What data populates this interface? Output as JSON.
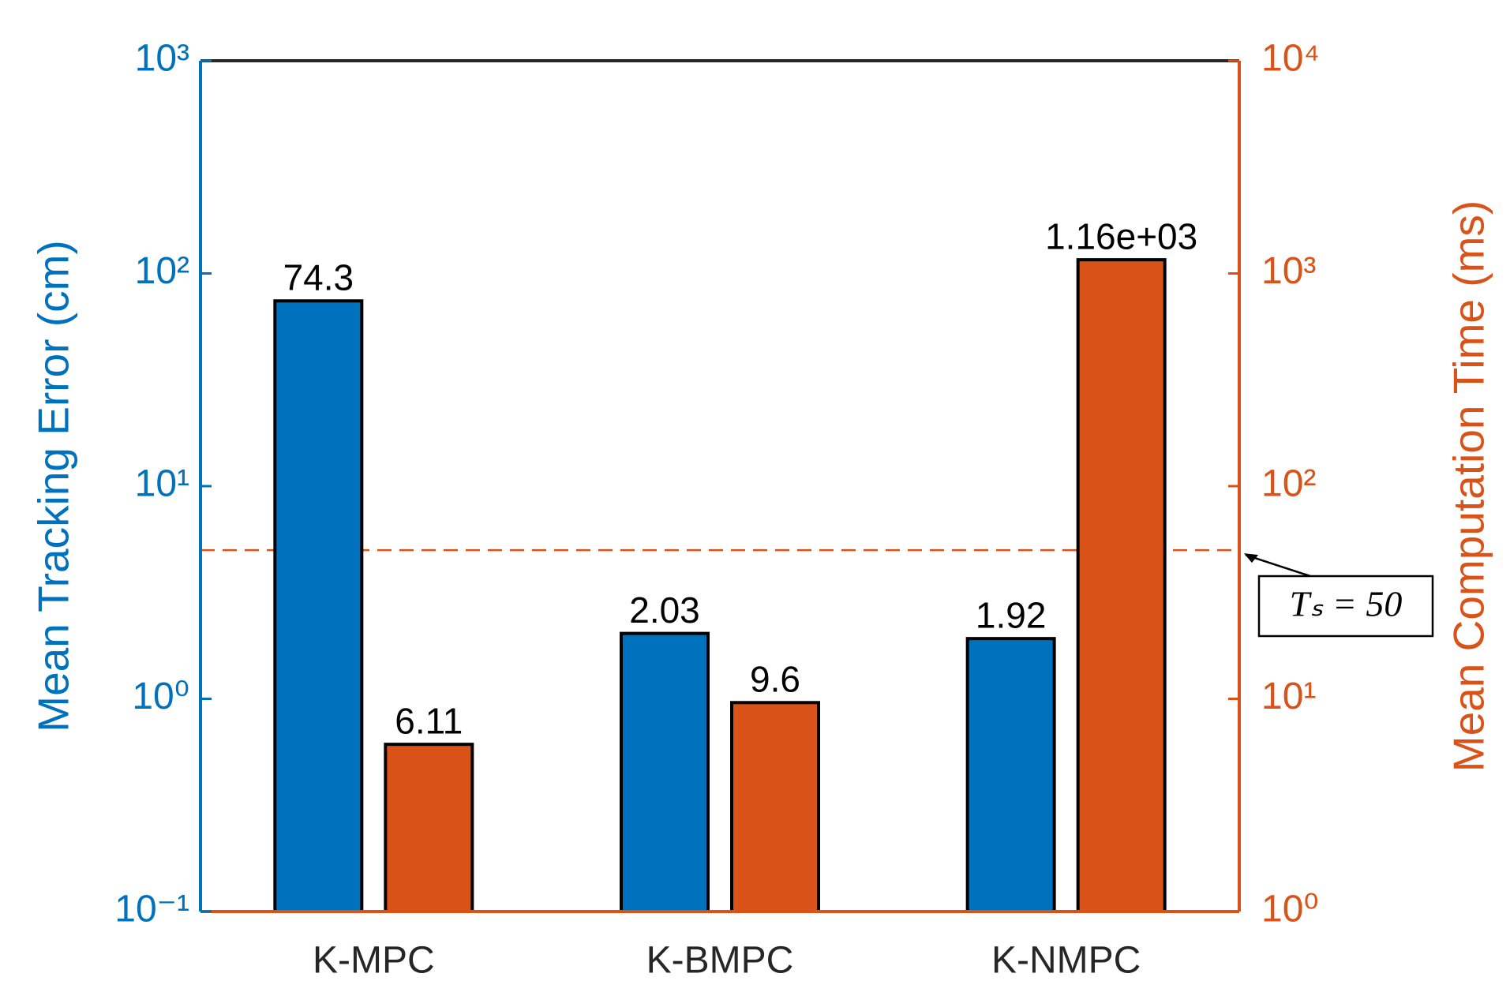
{
  "chart_data": {
    "type": "bar",
    "categories": [
      "K-MPC",
      "K-BMPC",
      "K-NMPC"
    ],
    "ylabel": "Mean Tracking Error (cm)",
    "y2label": "Mean Computation Time (ms)",
    "yscale": "log",
    "y2scale": "log",
    "ylim": [
      0.1,
      1000
    ],
    "yticks": [
      {
        "value": 0.1,
        "label": "10⁻¹"
      },
      {
        "value": 1,
        "label": "10⁰"
      },
      {
        "value": 10,
        "label": "10¹"
      },
      {
        "value": 100,
        "label": "10²"
      },
      {
        "value": 1000,
        "label": "10³"
      }
    ],
    "y2lim": [
      1,
      10000
    ],
    "y2ticks": [
      {
        "value": 1,
        "label": "10⁰"
      },
      {
        "value": 10,
        "label": "10¹"
      },
      {
        "value": 100,
        "label": "10²"
      },
      {
        "value": 1000,
        "label": "10³"
      },
      {
        "value": 10000,
        "label": "10⁴"
      }
    ],
    "series": [
      {
        "color": "#0072BD",
        "axis": "y",
        "values": [
          74.3,
          2.03,
          1.92
        ]
      },
      {
        "color": "#D95319",
        "axis": "y2",
        "values": [
          6.11,
          9.6,
          1160
        ],
        "value_labels": [
          "6.11",
          "9.6",
          "1.16e+03"
        ]
      }
    ],
    "reference_line": {
      "axis": "y2",
      "value": 50,
      "color": "#D95319",
      "label": "Tₛ = 50"
    }
  }
}
